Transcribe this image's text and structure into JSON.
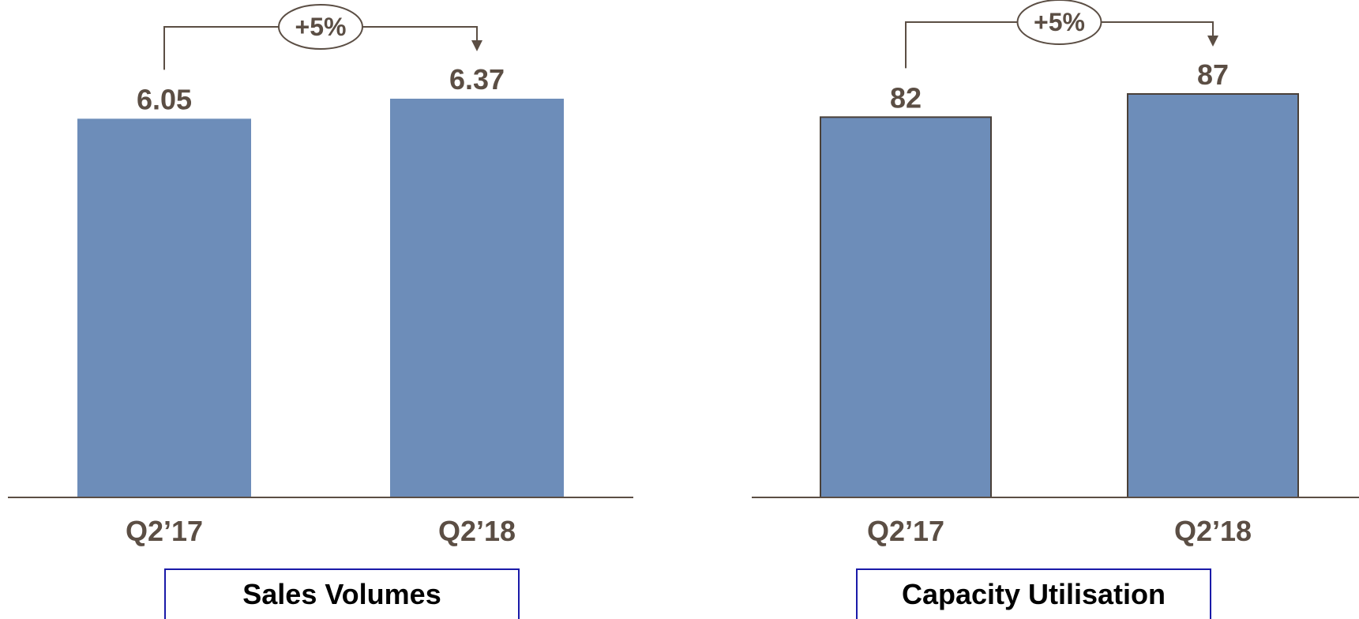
{
  "colors": {
    "bar": "#6d8db9",
    "bar_outline": "#4a4038",
    "text": "#5b4e44",
    "axis": "#5b4e44",
    "title_border": "#1a1aa8"
  },
  "chart_data": [
    {
      "type": "bar",
      "title": "Sales Volumes",
      "categories": [
        "Q2’17",
        "Q2’18"
      ],
      "values": [
        6.05,
        6.37
      ],
      "value_labels": [
        "6.05",
        "6.37"
      ],
      "ylim": [
        0,
        6.37
      ],
      "change_label": "+5%",
      "grid": false
    },
    {
      "type": "bar",
      "title": "Capacity Utilisation",
      "categories": [
        "Q2’17",
        "Q2’18"
      ],
      "values": [
        82,
        87
      ],
      "value_labels": [
        "82",
        "87"
      ],
      "ylim": [
        0,
        87
      ],
      "change_label": "+5%",
      "grid": false
    }
  ]
}
